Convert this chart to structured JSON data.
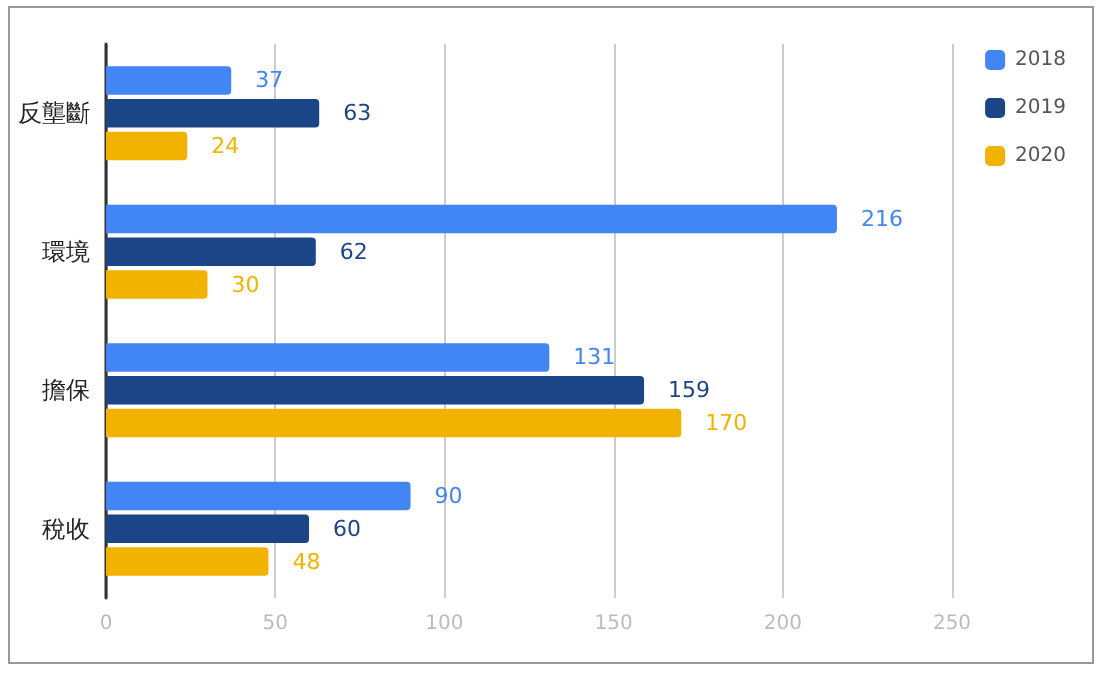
{
  "chart_data": {
    "type": "bar",
    "orientation": "horizontal",
    "categories": [
      "反壟斷",
      "環境",
      "擔保",
      "稅收"
    ],
    "series": [
      {
        "name": "2018",
        "color": "#4285f4",
        "values": [
          37,
          216,
          131,
          90
        ]
      },
      {
        "name": "2019",
        "color": "#1c4587",
        "values": [
          63,
          62,
          159,
          60
        ]
      },
      {
        "name": "2020",
        "color": "#f1b300",
        "values": [
          24,
          30,
          170,
          48
        ]
      }
    ],
    "xlim": [
      0,
      250
    ],
    "xticks": [
      0,
      50,
      100,
      150,
      200,
      250
    ],
    "grid": "x",
    "legend": "top right",
    "data_labels": true
  }
}
